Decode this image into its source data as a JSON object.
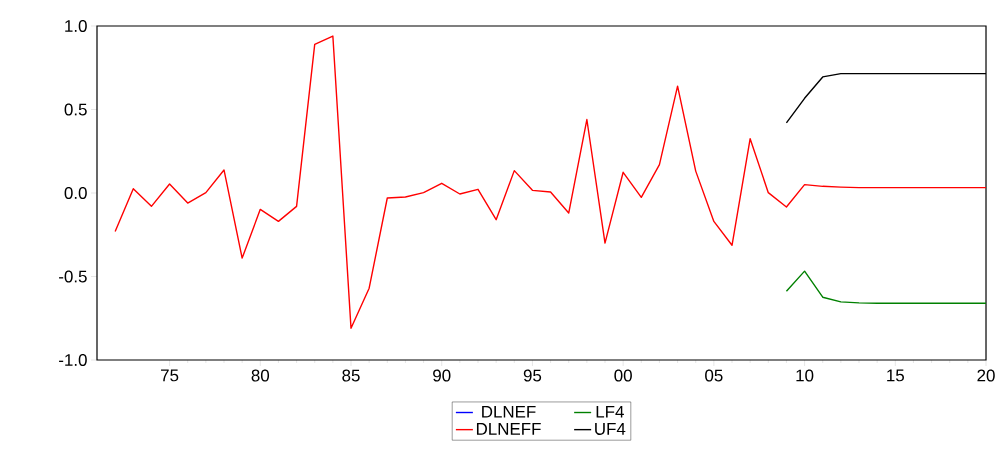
{
  "chart_data": {
    "type": "line",
    "x": [
      1972,
      1973,
      1974,
      1975,
      1976,
      1977,
      1978,
      1979,
      1980,
      1981,
      1982,
      1983,
      1984,
      1985,
      1986,
      1987,
      1988,
      1989,
      1990,
      1991,
      1992,
      1993,
      1994,
      1995,
      1996,
      1997,
      1998,
      1999,
      2000,
      2001,
      2002,
      2003,
      2004,
      2005,
      2006,
      2007,
      2008,
      2009,
      2010,
      2011,
      2012,
      2013,
      2014,
      2015,
      2016,
      2017,
      2018,
      2019,
      2020
    ],
    "series": [
      {
        "name": "DLNEF",
        "color": "#0000ff",
        "values": [
          null,
          null,
          null,
          null,
          null,
          null,
          null,
          null,
          null,
          null,
          null,
          null,
          null,
          null,
          null,
          null,
          null,
          null,
          null,
          null,
          null,
          null,
          null,
          null,
          null,
          null,
          null,
          null,
          null,
          null,
          null,
          null,
          null,
          null,
          null,
          null,
          null,
          null,
          null,
          null,
          null,
          null,
          null,
          null,
          null,
          null,
          null,
          null,
          null
        ]
      },
      {
        "name": "LF4",
        "color": "#008000",
        "values": [
          null,
          null,
          null,
          null,
          null,
          null,
          null,
          null,
          null,
          null,
          null,
          null,
          null,
          null,
          null,
          null,
          null,
          null,
          null,
          null,
          null,
          null,
          null,
          null,
          null,
          null,
          null,
          null,
          null,
          null,
          null,
          null,
          null,
          null,
          null,
          null,
          null,
          -0.588,
          -0.468,
          -0.624,
          -0.652,
          -0.658,
          -0.66,
          -0.66,
          -0.66,
          -0.66,
          -0.66,
          -0.66,
          -0.66
        ]
      },
      {
        "name": "DLNEFF",
        "color": "#ff0000",
        "values": [
          -0.23,
          0.026,
          -0.08,
          0.054,
          -0.06,
          0.002,
          0.138,
          -0.39,
          -0.098,
          -0.17,
          -0.08,
          0.89,
          0.94,
          -0.81,
          -0.57,
          -0.03,
          -0.024,
          0.002,
          0.058,
          -0.006,
          0.022,
          -0.16,
          0.134,
          0.016,
          0.006,
          -0.12,
          0.44,
          -0.3,
          0.124,
          -0.026,
          0.17,
          0.64,
          0.131,
          -0.17,
          -0.313,
          0.325,
          0.002,
          -0.084,
          0.05,
          0.04,
          0.035,
          0.032,
          0.032,
          0.032,
          0.032,
          0.032,
          0.032,
          0.032,
          0.032
        ]
      },
      {
        "name": "UF4",
        "color": "#000000",
        "values": [
          null,
          null,
          null,
          null,
          null,
          null,
          null,
          null,
          null,
          null,
          null,
          null,
          null,
          null,
          null,
          null,
          null,
          null,
          null,
          null,
          null,
          null,
          null,
          null,
          null,
          null,
          null,
          null,
          null,
          null,
          null,
          null,
          null,
          null,
          null,
          null,
          null,
          0.42,
          0.567,
          0.695,
          0.715,
          0.715,
          0.715,
          0.715,
          0.715,
          0.715,
          0.715,
          0.715,
          0.715
        ]
      }
    ],
    "xlim": [
      1971,
      2020
    ],
    "xticks": [
      {
        "value": 1975,
        "label": "75"
      },
      {
        "value": 1980,
        "label": "80"
      },
      {
        "value": 1985,
        "label": "85"
      },
      {
        "value": 1990,
        "label": "90"
      },
      {
        "value": 1995,
        "label": "95"
      },
      {
        "value": 2000,
        "label": "00"
      },
      {
        "value": 2005,
        "label": "05"
      },
      {
        "value": 2010,
        "label": "10"
      },
      {
        "value": 2015,
        "label": "15"
      },
      {
        "value": 2020,
        "label": "20"
      }
    ],
    "ylim": [
      -1,
      1
    ],
    "yticks": [
      {
        "value": -1,
        "label": "-1.0"
      },
      {
        "value": -0.5,
        "label": "-0.5"
      },
      {
        "value": 0,
        "label": "0.0"
      },
      {
        "value": 0.5,
        "label": "0.5"
      },
      {
        "value": 1,
        "label": "1.0"
      }
    ],
    "legend": "bottom"
  }
}
